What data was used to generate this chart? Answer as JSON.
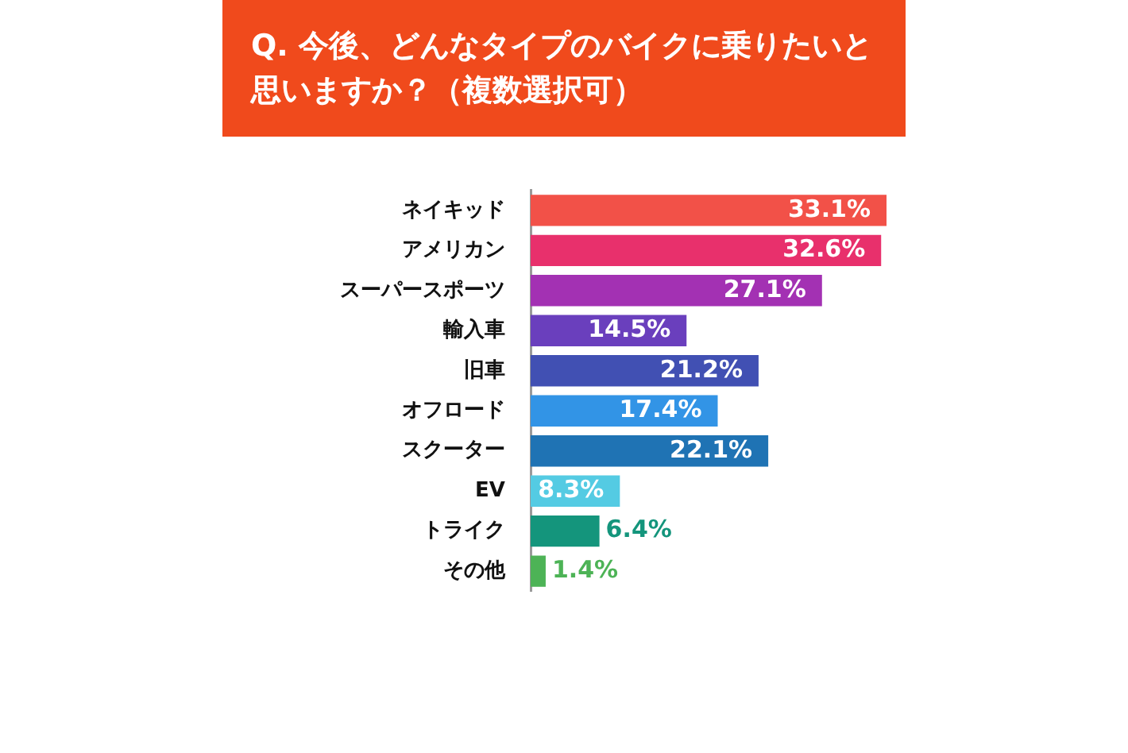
{
  "chart_data": {
    "type": "bar",
    "orientation": "horizontal",
    "title": "Q. 今後、どんなタイプのバイクに乗りたいと思いますか？（複数選択可）",
    "categories": [
      "ネイキッド",
      "アメリカン",
      "スーパースポーツ",
      "輸入車",
      "旧車",
      "オフロード",
      "スクーター",
      "EV",
      "トライク",
      "その他"
    ],
    "values": [
      33.1,
      32.6,
      27.1,
      14.5,
      21.2,
      17.4,
      22.1,
      8.3,
      6.4,
      1.4
    ],
    "colors": [
      "#f25148",
      "#e8306c",
      "#a331b3",
      "#6a3fbd",
      "#4150b3",
      "#3294e6",
      "#1f73b4",
      "#54cbe3",
      "#14957c",
      "#4db356"
    ],
    "value_labels": [
      "33.1%",
      "32.6%",
      "27.1%",
      "14.5%",
      "21.2%",
      "17.4%",
      "22.1%",
      "8.3%",
      "6.4%",
      "1.4%"
    ],
    "grid": false,
    "legend": false
  }
}
